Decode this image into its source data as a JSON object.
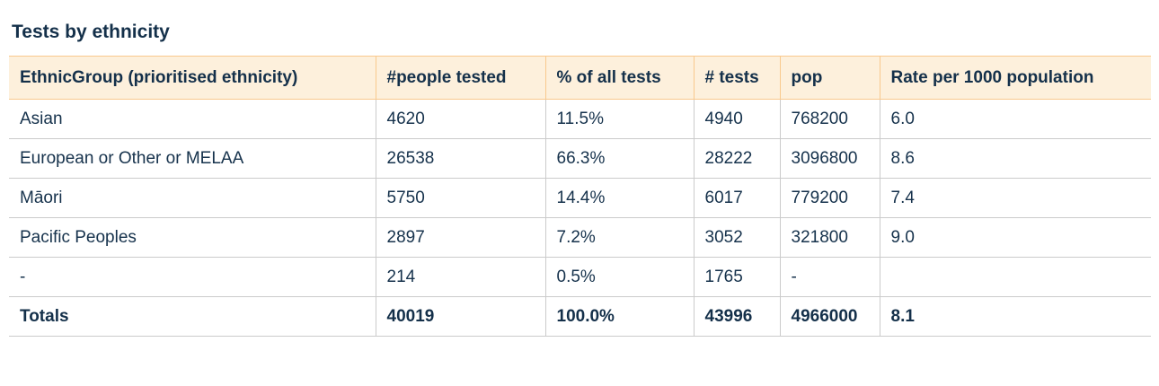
{
  "page": {
    "title": "Tests by ethnicity"
  },
  "table": {
    "columns": [
      {
        "label": "EthnicGroup (prioritised ethnicity)"
      },
      {
        "label": "#people tested"
      },
      {
        "label": "% of all tests"
      },
      {
        "label": "# tests"
      },
      {
        "label": "pop"
      },
      {
        "label": "Rate per 1000 population"
      }
    ],
    "rows": [
      [
        "Asian",
        "4620",
        "11.5%",
        "4940",
        "768200",
        "6.0"
      ],
      [
        "European or Other or MELAA",
        "26538",
        "66.3%",
        "28222",
        "3096800",
        "8.6"
      ],
      [
        "Māori",
        "5750",
        "14.4%",
        "6017",
        "779200",
        "7.4"
      ],
      [
        "Pacific Peoples",
        "2897",
        "7.2%",
        "3052",
        "321800",
        "9.0"
      ],
      [
        "-",
        "214",
        "0.5%",
        "1765",
        "-",
        ""
      ],
      [
        "Totals",
        "40019",
        "100.0%",
        "43996",
        "4966000",
        "8.1"
      ]
    ],
    "totals_row_index": 5
  },
  "colors": {
    "header_background": "#fdf0dc",
    "header_border": "#f9c98d",
    "row_border": "#cbcbcb",
    "text": "#16324c",
    "title_text": "#14304a",
    "page_background": "#ffffff"
  }
}
